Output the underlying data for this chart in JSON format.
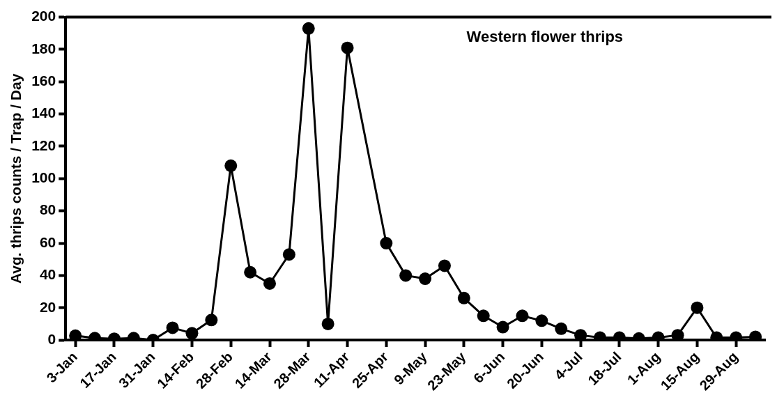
{
  "chart_data": {
    "type": "line",
    "title": "Western flower thrips",
    "ylabel": "Avg. thrips counts / Trap / Day",
    "categories": [
      "3-Jan",
      null,
      "17-Jan",
      null,
      "31-Jan",
      null,
      "14-Feb",
      null,
      "28-Feb",
      null,
      "14-Mar",
      null,
      "28-Mar",
      null,
      "11-Apr",
      null,
      "25-Apr",
      null,
      "9-May",
      null,
      "23-May",
      null,
      "6-Jun",
      null,
      "20-Jun",
      null,
      "4-Jul",
      null,
      "18-Jul",
      null,
      "1-Aug",
      null,
      "15-Aug",
      null,
      "29-Aug",
      null
    ],
    "series": [
      {
        "color": "#000000",
        "values": [
          2.7,
          1.2,
          0.8,
          1.2,
          0,
          7.6,
          4.2,
          12.4,
          108,
          42,
          35,
          53,
          193,
          10,
          181,
          null,
          60,
          40,
          38,
          46,
          26,
          15,
          8,
          15,
          12,
          7,
          3,
          1.5,
          1.5,
          1,
          1.5,
          3,
          20,
          1.5,
          1.5,
          2
        ]
      }
    ],
    "ylim": [
      0,
      200
    ],
    "yticks": [
      0,
      20,
      40,
      60,
      80,
      100,
      120,
      140,
      160,
      180,
      200
    ],
    "grid": false,
    "marker": "circle",
    "line_style": "solid"
  }
}
